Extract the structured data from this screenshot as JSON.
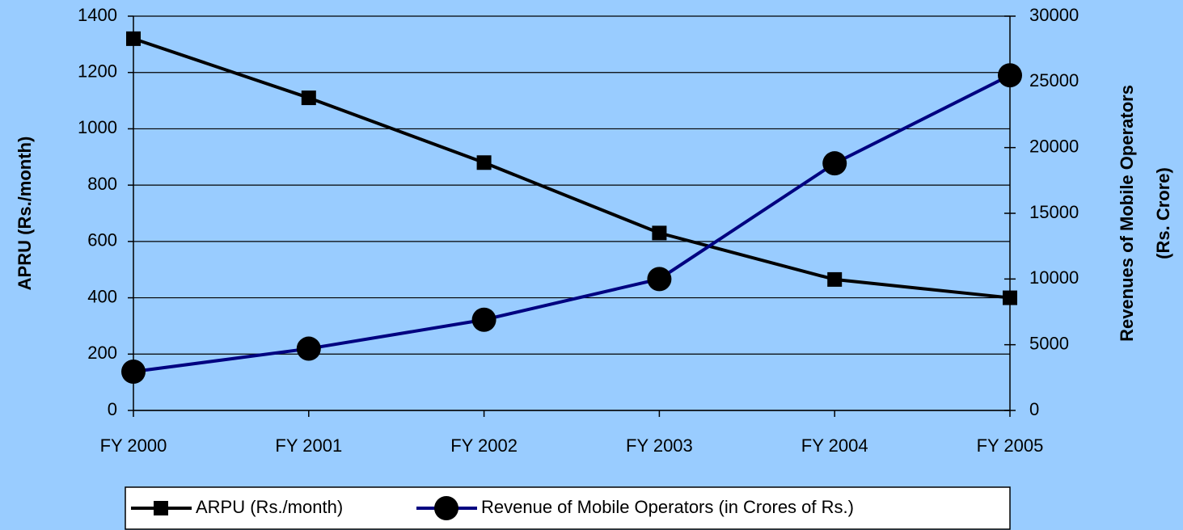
{
  "chart_data": {
    "type": "line",
    "categories": [
      "FY 2000",
      "FY 2001",
      "FY 2002",
      "FY 2003",
      "FY 2004",
      "FY 2005"
    ],
    "series": [
      {
        "name": "ARPU (Rs./month)",
        "color": "#000000",
        "marker": "square",
        "values": [
          1320,
          1110,
          880,
          630,
          465,
          400
        ]
      },
      {
        "name": "Revenue of Mobile Operators (in Crores of Rs.)",
        "color": "#000080",
        "marker": "circle",
        "axis": "y2",
        "values": [
          2950,
          4700,
          6900,
          10000,
          18800,
          25500
        ]
      }
    ],
    "y_label": "APRU (Rs./month)",
    "y2_label": [
      "Revenues of Mobile Operators",
      "(Rs. Crore)"
    ],
    "ylim": [
      0,
      1400
    ],
    "yticks": [
      0,
      200,
      400,
      600,
      800,
      1000,
      1200,
      1400
    ],
    "y2lim": [
      0,
      30000
    ],
    "y2ticks": [
      0,
      5000,
      10000,
      15000,
      20000,
      25000,
      30000
    ],
    "grid": true,
    "legend": "bottom"
  }
}
